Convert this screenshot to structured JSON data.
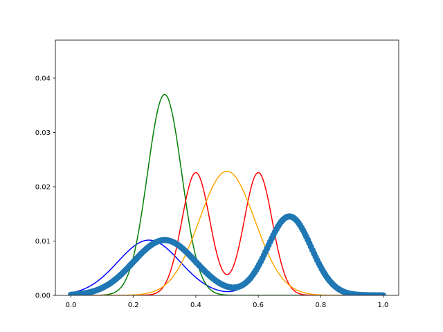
{
  "chart_data": {
    "type": "line",
    "title": "",
    "xlabel": "",
    "ylabel": "",
    "xlim": [
      -0.05,
      1.05
    ],
    "ylim": [
      0.0,
      0.047
    ],
    "grid": false,
    "x_ticks": [
      0.0,
      0.2,
      0.4,
      0.6,
      0.8,
      1.0
    ],
    "x_tick_labels": [
      "0.0",
      "0.2",
      "0.4",
      "0.6",
      "0.8",
      "1.0"
    ],
    "y_ticks": [
      0.0,
      0.01,
      0.02,
      0.03,
      0.04
    ],
    "y_tick_labels": [
      "0.00",
      "0.01",
      "0.02",
      "0.03",
      "0.04"
    ],
    "scatter_series": {
      "color": "#1f77b4",
      "x_start": 0.0,
      "x_end": 1.0,
      "count": 200,
      "components": [
        {
          "weight": 0.5,
          "mean": 0.3,
          "sd": 0.1
        },
        {
          "weight": 0.5,
          "mean": 0.7,
          "sd": 0.07
        }
      ],
      "scale": 0.0051
    },
    "series": [
      {
        "color": "#0000ff",
        "components": [
          {
            "weight": 0.5,
            "mean": 0.25,
            "sd": 0.1
          },
          {
            "weight": 0.5,
            "mean": 0.7,
            "sd": 0.07
          }
        ],
        "scale": 0.0051
      },
      {
        "color": "#008000",
        "components": [
          {
            "weight": 1.0,
            "mean": 0.3,
            "sd": 0.055
          }
        ],
        "scale": 0.0051
      },
      {
        "color": "#ff0000",
        "components": [
          {
            "weight": 0.5,
            "mean": 0.4,
            "sd": 0.045
          },
          {
            "weight": 0.5,
            "mean": 0.6,
            "sd": 0.045
          }
        ],
        "scale": 0.0051
      },
      {
        "color": "#ffa500",
        "components": [
          {
            "weight": 1.0,
            "mean": 0.5,
            "sd": 0.089
          }
        ],
        "scale": 0.0051
      }
    ]
  }
}
